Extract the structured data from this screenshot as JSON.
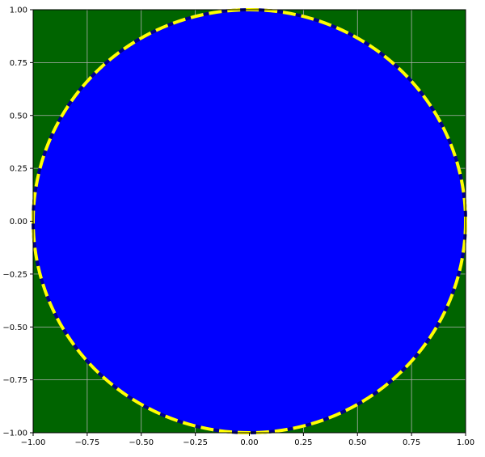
{
  "chart_data": {
    "type": "area",
    "title": "",
    "xlabel": "",
    "ylabel": "",
    "xlim": [
      -1.0,
      1.0
    ],
    "ylim": [
      -1.0,
      1.0
    ],
    "grid": true,
    "legend": "none",
    "x_ticks": [
      "−1.00",
      "−0.75",
      "−0.50",
      "−0.25",
      "0.00",
      "0.25",
      "0.50",
      "0.75",
      "1.00"
    ],
    "x_tick_values": [
      -1.0,
      -0.75,
      -0.5,
      -0.25,
      0.0,
      0.25,
      0.5,
      0.75,
      1.0
    ],
    "y_ticks": [
      "1.00",
      "0.75",
      "0.50",
      "0.25",
      "0.00",
      "−0.25",
      "−0.50",
      "−0.75",
      "−1.00"
    ],
    "y_tick_values": [
      1.0,
      0.75,
      0.5,
      0.25,
      0.0,
      -0.25,
      -0.5,
      -0.75,
      -1.0
    ],
    "shapes": [
      {
        "kind": "circle",
        "center": [
          0.0,
          0.0
        ],
        "radius": 1.0,
        "fill": "#0000ff",
        "edge_color": "#ffff00",
        "edge_style": "dashed",
        "edge_gap_color": "#00008b"
      }
    ],
    "colors": {
      "axes_background": "#006400",
      "grid": "#b0b0b0",
      "spine": "#000000"
    }
  }
}
